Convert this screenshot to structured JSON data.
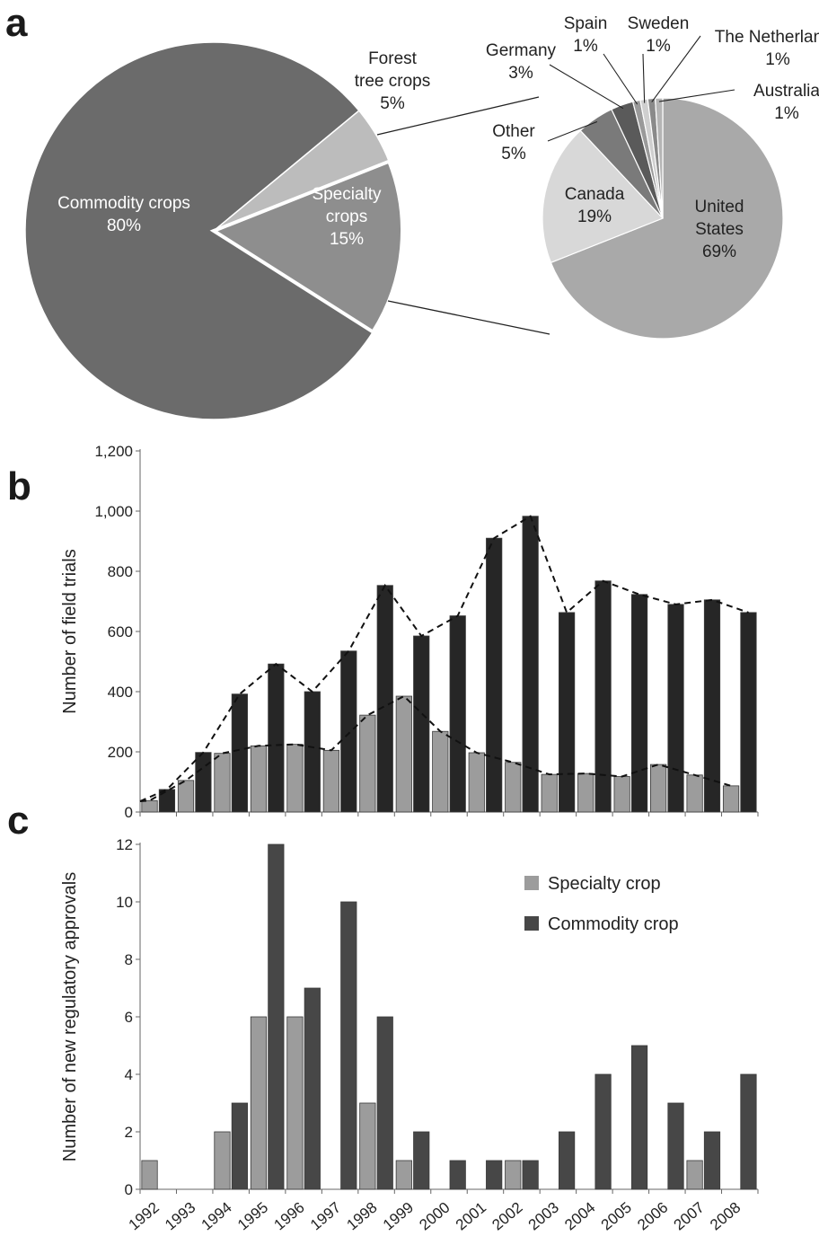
{
  "panels": {
    "a": "a",
    "b": "b",
    "c": "c"
  },
  "colors": {
    "commodity_pie": "#6b6b6b",
    "forest_pie": "#bcbcbc",
    "specialty_pie": "#8e8e8e",
    "us_pie": "#a9a9a9",
    "canada_pie": "#d8d8d8",
    "other_pie": "#7a7a7a",
    "germany_pie": "#5a5a5a",
    "small_pie": "#9a9a9a",
    "specialty_bar": "#9c9c9c",
    "commodity_bar_b": "#262626",
    "commodity_bar_c": "#474747"
  },
  "chart_data": [
    {
      "type": "pie",
      "slices": [
        {
          "label": "Commodity crops",
          "value": 80,
          "text": "80%"
        },
        {
          "label": "Forest tree crops",
          "value": 5,
          "text": "5%"
        },
        {
          "label": "Specialty crops",
          "value": 15,
          "text": "15%"
        }
      ]
    },
    {
      "type": "pie",
      "slices": [
        {
          "label": "United States",
          "value": 69,
          "text": "69%"
        },
        {
          "label": "Canada",
          "value": 19,
          "text": "19%"
        },
        {
          "label": "Other",
          "value": 5,
          "text": "5%"
        },
        {
          "label": "Germany",
          "value": 3,
          "text": "3%"
        },
        {
          "label": "Spain",
          "value": 1,
          "text": "1%"
        },
        {
          "label": "Sweden",
          "value": 1,
          "text": "1%"
        },
        {
          "label": "The Netherlands",
          "value": 1,
          "text": "1%"
        },
        {
          "label": "Australia",
          "value": 1,
          "text": "1%"
        }
      ]
    },
    {
      "type": "bar",
      "ylabel": "Number of field trials",
      "ylim": [
        0,
        1200
      ],
      "yticks": [
        "0",
        "200",
        "400",
        "600",
        "800",
        "1,000",
        "1,200"
      ],
      "categories": [
        "1992",
        "1993",
        "1994",
        "1995",
        "1996",
        "1997",
        "1998",
        "1999",
        "2000",
        "2001",
        "2002",
        "2003",
        "2004",
        "2005",
        "2006",
        "2007",
        "2008"
      ],
      "series": [
        {
          "values": [
            38,
            105,
            195,
            220,
            225,
            205,
            322,
            385,
            268,
            197,
            165,
            125,
            128,
            118,
            158,
            123,
            87
          ]
        },
        {
          "values": [
            75,
            198,
            392,
            492,
            400,
            535,
            753,
            585,
            652,
            910,
            983,
            663,
            768,
            723,
            690,
            705,
            663
          ]
        }
      ],
      "trend_lines": "dashed"
    },
    {
      "type": "bar",
      "ylabel": "Number of new regulatory approvals",
      "ylim": [
        0,
        12
      ],
      "yticks": [
        "0",
        "2",
        "4",
        "6",
        "8",
        "10",
        "12"
      ],
      "categories": [
        "1992",
        "1993",
        "1994",
        "1995",
        "1996",
        "1997",
        "1998",
        "1999",
        "2000",
        "2001",
        "2002",
        "2003",
        "2004",
        "2005",
        "2006",
        "2007",
        "2008"
      ],
      "series": [
        {
          "name": "Specialty crop",
          "values": [
            1,
            0,
            2,
            6,
            6,
            0,
            3,
            1,
            0,
            0,
            1,
            0,
            0,
            0,
            0,
            1,
            0
          ]
        },
        {
          "name": "Commodity crop",
          "values": [
            0,
            0,
            3,
            12,
            7,
            10,
            6,
            2,
            1,
            1,
            1,
            2,
            4,
            5,
            3,
            2,
            4
          ]
        }
      ],
      "legend": "top-right"
    }
  ]
}
